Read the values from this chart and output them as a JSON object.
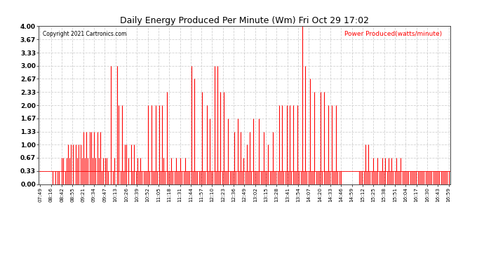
{
  "title": "Daily Energy Produced Per Minute (Wm) Fri Oct 29 17:02",
  "copyright": "Copyright 2021 Cartronics.com",
  "legend_label": "Power Produced(watts/minute)",
  "legend_color": "#ff0000",
  "line_color": "#ff0000",
  "background_color": "#ffffff",
  "grid_color": "#cccccc",
  "ylim": [
    0,
    4.0
  ],
  "yticks": [
    0.0,
    0.33,
    0.67,
    1.0,
    1.33,
    1.67,
    2.0,
    2.33,
    2.67,
    3.0,
    3.33,
    3.67,
    4.0
  ],
  "ytick_labels": [
    "0.00",
    "0.33",
    "0.67",
    "1.00",
    "1.33",
    "1.67",
    "2.00",
    "2.33",
    "2.67",
    "3.00",
    "3.33",
    "3.67",
    "4.00"
  ],
  "x_tick_labels": [
    "07:49",
    "08:16",
    "08:42",
    "08:55",
    "09:21",
    "09:34",
    "09:47",
    "10:13",
    "10:26",
    "10:39",
    "10:52",
    "11:05",
    "11:18",
    "11:31",
    "11:44",
    "11:57",
    "12:10",
    "12:23",
    "12:36",
    "12:49",
    "13:02",
    "13:15",
    "13:28",
    "13:41",
    "13:54",
    "14:07",
    "14:20",
    "14:33",
    "14:46",
    "14:59",
    "15:12",
    "15:25",
    "15:38",
    "15:51",
    "16:04",
    "16:17",
    "16:30",
    "16:43",
    "16:59"
  ],
  "data": [
    0.0,
    0.0,
    0.0,
    0.0,
    0.0,
    0.0,
    0.0,
    0.0,
    0.33,
    0.0,
    0.33,
    0.33,
    0.33,
    0.0,
    0.67,
    0.67,
    0.33,
    0.67,
    1.0,
    0.67,
    1.0,
    1.0,
    0.0,
    1.0,
    0.67,
    1.0,
    1.0,
    0.67,
    1.33,
    0.67,
    1.33,
    0.67,
    1.33,
    1.33,
    0.67,
    1.33,
    0.67,
    1.33,
    0.67,
    1.33,
    0.33,
    0.67,
    0.67,
    0.67,
    0.33,
    0.0,
    3.0,
    0.33,
    0.67,
    0.0,
    3.0,
    2.0,
    0.33,
    2.0,
    0.33,
    1.0,
    1.0,
    0.67,
    0.0,
    1.0,
    0.33,
    1.0,
    0.33,
    0.67,
    0.33,
    0.67,
    0.33,
    0.33,
    0.33,
    0.33,
    2.0,
    0.33,
    2.0,
    0.33,
    0.33,
    2.0,
    0.33,
    2.0,
    0.33,
    2.0,
    0.67,
    0.33,
    2.33,
    0.33,
    0.33,
    0.67,
    0.33,
    0.33,
    0.67,
    0.33,
    0.33,
    0.67,
    0.33,
    0.33,
    0.67,
    0.33,
    0.33,
    0.33,
    3.0,
    0.33,
    2.67,
    0.33,
    0.33,
    0.33,
    0.33,
    2.33,
    0.33,
    0.33,
    2.0,
    0.33,
    1.67,
    0.33,
    0.33,
    3.0,
    0.33,
    3.0,
    0.33,
    2.33,
    0.33,
    2.33,
    0.33,
    0.33,
    1.67,
    0.33,
    0.33,
    0.33,
    1.33,
    0.33,
    1.67,
    0.33,
    1.33,
    0.33,
    0.67,
    0.33,
    1.0,
    0.33,
    1.33,
    0.33,
    1.67,
    0.33,
    0.33,
    0.33,
    1.67,
    0.33,
    0.33,
    1.33,
    0.33,
    0.33,
    1.0,
    0.33,
    0.33,
    1.33,
    0.33,
    0.33,
    0.33,
    2.0,
    0.33,
    2.0,
    0.33,
    0.33,
    2.0,
    0.33,
    2.0,
    0.33,
    2.0,
    0.33,
    0.33,
    2.0,
    0.33,
    0.33,
    4.0,
    0.33,
    3.0,
    0.33,
    0.33,
    2.67,
    0.33,
    0.33,
    2.33,
    0.33,
    0.33,
    0.33,
    2.33,
    0.33,
    2.33,
    0.33,
    0.33,
    2.0,
    0.33,
    2.0,
    0.33,
    0.33,
    2.0,
    0.33,
    0.33,
    0.33,
    0.0,
    0.0,
    0.0,
    0.0,
    0.0,
    0.0,
    0.0,
    0.0,
    0.0,
    0.0,
    0.0,
    0.33,
    0.33,
    0.33,
    0.33,
    1.0,
    0.33,
    1.0,
    0.33,
    0.33,
    0.67,
    0.33,
    0.33,
    0.67,
    0.33,
    0.33,
    0.67,
    0.33,
    0.67,
    0.33,
    0.67,
    0.33,
    0.67,
    0.33,
    0.33,
    0.67,
    0.33,
    0.33,
    0.67,
    0.33,
    0.33,
    0.33,
    0.33,
    0.33,
    0.33,
    0.33,
    0.33,
    0.33,
    0.33,
    0.33,
    0.33,
    0.33,
    0.33,
    0.33,
    0.33,
    0.33,
    0.33,
    0.33,
    0.33,
    0.33,
    0.33,
    0.33,
    0.33,
    0.33,
    0.33,
    0.33,
    0.33,
    0.33,
    0.33,
    0.33
  ],
  "n_ticks": 39,
  "baseline": 0.33
}
